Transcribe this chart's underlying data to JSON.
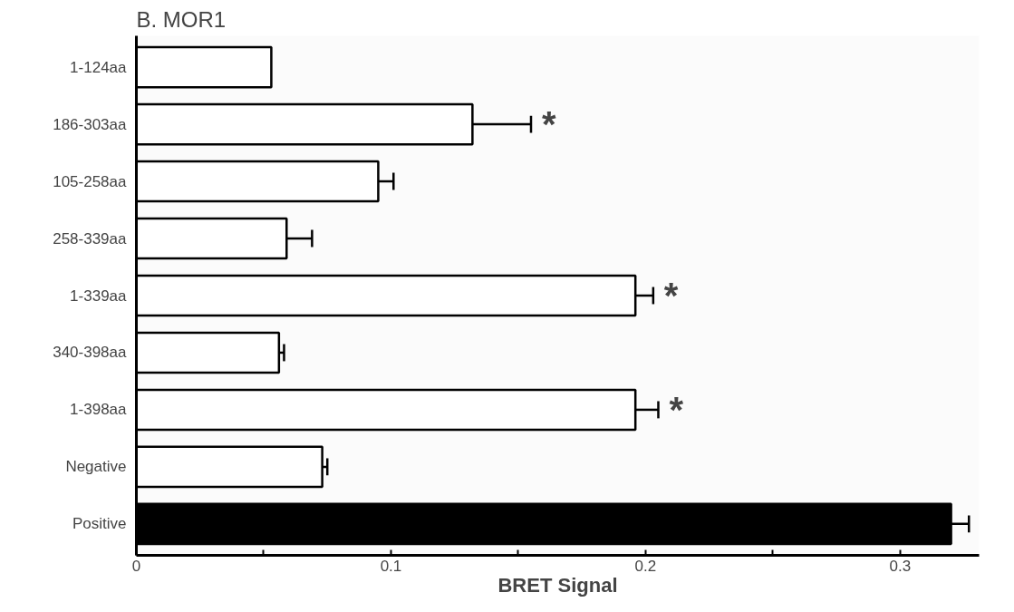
{
  "chart_data": {
    "type": "bar",
    "orientation": "horizontal",
    "title": "B.  MOR1",
    "xlabel": "BRET Signal",
    "categories": [
      "1-124aa",
      "186-303aa",
      "105-258aa",
      "258-339aa",
      "1-339aa",
      "340-398aa",
      "1-398aa",
      "Negative",
      "Positive"
    ],
    "values": [
      0.053,
      0.132,
      0.095,
      0.059,
      0.196,
      0.056,
      0.196,
      0.073,
      0.32
    ],
    "errors": [
      null,
      [
        0.132,
        0.155
      ],
      [
        0.095,
        0.101
      ],
      [
        0.059,
        0.069
      ],
      [
        0.196,
        0.203
      ],
      [
        0.056,
        0.058
      ],
      [
        0.196,
        0.205
      ],
      [
        0.073,
        0.075
      ],
      [
        0.32,
        0.327
      ]
    ],
    "colors": [
      "#ffffff",
      "#ffffff",
      "#ffffff",
      "#ffffff",
      "#ffffff",
      "#ffffff",
      "#ffffff",
      "#ffffff",
      "#000000"
    ],
    "xlim": [
      0,
      0.331
    ],
    "xticks": [
      0,
      {
        "value": 0.05,
        "label": null
      },
      0.1,
      {
        "value": 0.15,
        "label": null
      },
      0.2,
      {
        "value": 0.25,
        "label": null
      },
      0.3
    ],
    "annotations": [
      {
        "text": "*",
        "x": 0.155,
        "y": "186-303aa"
      },
      {
        "text": "*",
        "x": 0.203,
        "y": "1-339aa"
      },
      {
        "text": "*",
        "x": 0.205,
        "y": "1-398aa"
      }
    ],
    "grid": false
  }
}
